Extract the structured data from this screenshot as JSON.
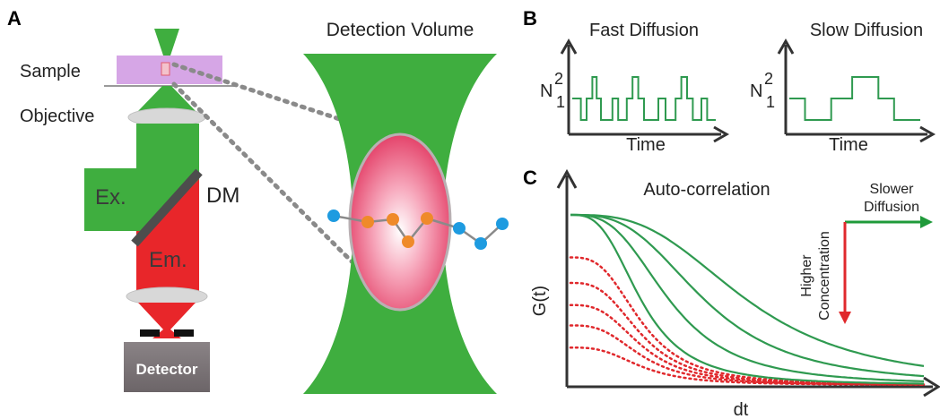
{
  "panel_a": {
    "label": "A",
    "sample_label": "Sample",
    "objective_label": "Objective",
    "excitation_label": "Ex.",
    "emission_label": "Em.",
    "dm_label": "DM",
    "detector_label": "Detector",
    "detection_volume_title": "Detection Volume",
    "colors": {
      "excitation": "#3fae3f",
      "emission": "#e8262a",
      "sample": "#d6a6e6",
      "detector": "#777174"
    }
  },
  "panel_b": {
    "label": "B",
    "fast": {
      "title": "Fast Diffusion",
      "ylabel": "N",
      "ytick_1": "1",
      "ytick_2": "2",
      "xlabel": "Time",
      "trace": [
        [
          0,
          1
        ],
        [
          0.06,
          1
        ],
        [
          0.06,
          0
        ],
        [
          0.1,
          0
        ],
        [
          0.1,
          1
        ],
        [
          0.14,
          1
        ],
        [
          0.14,
          2
        ],
        [
          0.17,
          2
        ],
        [
          0.17,
          1
        ],
        [
          0.2,
          1
        ],
        [
          0.2,
          0
        ],
        [
          0.28,
          0
        ],
        [
          0.28,
          1
        ],
        [
          0.32,
          1
        ],
        [
          0.32,
          0
        ],
        [
          0.38,
          0
        ],
        [
          0.38,
          1
        ],
        [
          0.42,
          1
        ],
        [
          0.42,
          2
        ],
        [
          0.46,
          2
        ],
        [
          0.46,
          1
        ],
        [
          0.5,
          1
        ],
        [
          0.5,
          0
        ],
        [
          0.6,
          0
        ],
        [
          0.6,
          1
        ],
        [
          0.65,
          1
        ],
        [
          0.65,
          0
        ],
        [
          0.72,
          0
        ],
        [
          0.72,
          1
        ],
        [
          0.76,
          1
        ],
        [
          0.76,
          2
        ],
        [
          0.8,
          2
        ],
        [
          0.8,
          1
        ],
        [
          0.84,
          1
        ],
        [
          0.84,
          0
        ],
        [
          0.9,
          0
        ],
        [
          0.9,
          1
        ],
        [
          0.94,
          1
        ],
        [
          0.94,
          0
        ],
        [
          1,
          0
        ]
      ]
    },
    "slow": {
      "title": "Slow Diffusion",
      "ylabel": "N",
      "ytick_1": "1",
      "ytick_2": "2",
      "xlabel": "Time",
      "trace": [
        [
          0,
          1
        ],
        [
          0.12,
          1
        ],
        [
          0.12,
          0
        ],
        [
          0.32,
          0
        ],
        [
          0.32,
          1
        ],
        [
          0.48,
          1
        ],
        [
          0.48,
          2
        ],
        [
          0.68,
          2
        ],
        [
          0.68,
          1
        ],
        [
          0.8,
          1
        ],
        [
          0.8,
          0
        ],
        [
          1,
          0
        ]
      ]
    },
    "color": "#2f9a50"
  },
  "panel_c": {
    "label": "C",
    "title": "Auto-correlation",
    "ylabel": "G(t)",
    "xlabel": "dt",
    "slower_label_1": "Slower",
    "slower_label_2": "Diffusion",
    "higher_label_1": "Higher",
    "higher_label_2": "Concentration",
    "green_color": "#2f9a50",
    "red_color": "#e0282c",
    "green_curves": [
      {
        "amplitude": 1.0,
        "tau": 0.2
      },
      {
        "amplitude": 1.0,
        "tau": 0.28
      },
      {
        "amplitude": 1.0,
        "tau": 0.38
      },
      {
        "amplitude": 1.0,
        "tau": 0.5
      }
    ],
    "red_curves": [
      {
        "amplitude": 0.75,
        "tau": 0.2
      },
      {
        "amplitude": 0.6,
        "tau": 0.2
      },
      {
        "amplitude": 0.47,
        "tau": 0.2
      },
      {
        "amplitude": 0.35,
        "tau": 0.2
      },
      {
        "amplitude": 0.22,
        "tau": 0.2
      }
    ]
  }
}
